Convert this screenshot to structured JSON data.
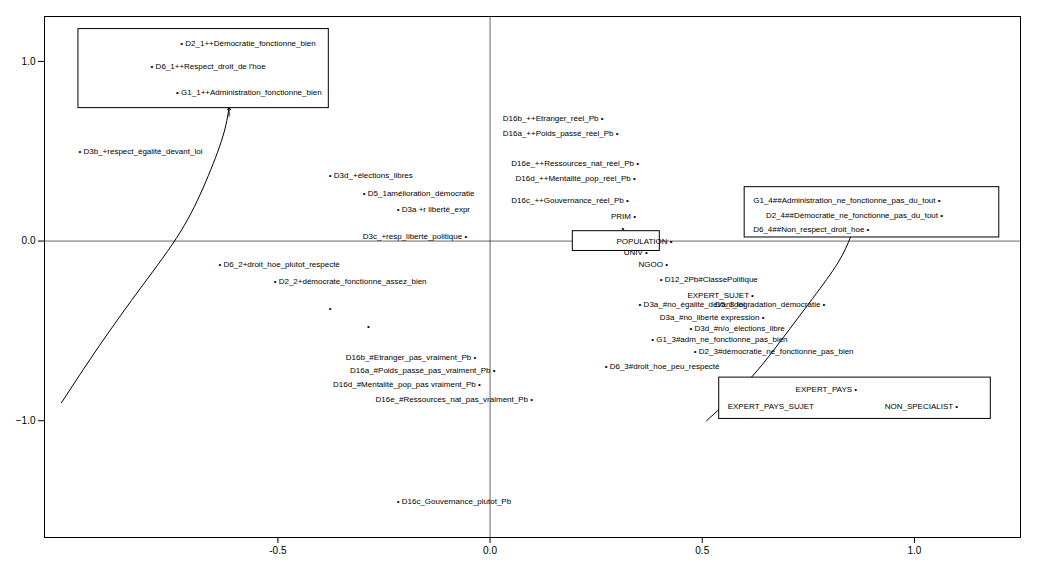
{
  "chart_data": {
    "type": "text_scatter",
    "xlim": [
      -1.05,
      1.25
    ],
    "ylim": [
      -1.65,
      1.25
    ],
    "xticks": [
      -0.5,
      {
        "value": 0,
        "label": "0.0"
      },
      0.5,
      {
        "value": 1,
        "label": "1.0"
      }
    ],
    "yticks": [
      {
        "value": -1,
        "label": "−1.0"
      },
      {
        "value": 0,
        "label": "0.0"
      },
      {
        "value": 1,
        "label": "1.0"
      }
    ],
    "grid": false,
    "cross_lines": {
      "x": 0,
      "y": 0
    },
    "curves": [
      {
        "x": [
          -0.615,
          -0.63,
          -0.67,
          -0.73,
          -0.82,
          -0.92,
          -1.01
        ],
        "y": [
          0.745,
          0.58,
          0.33,
          0.05,
          -0.25,
          -0.58,
          -0.9
        ]
      },
      {
        "x": [
          0.85,
          0.82,
          0.76,
          0.69,
          0.63,
          0.57,
          0.51
        ],
        "y": [
          0.025,
          -0.12,
          -0.32,
          -0.54,
          -0.72,
          -0.87,
          -1.0
        ]
      }
    ],
    "arrows": [
      {
        "from": [
          -0.615,
          0.695
        ],
        "to": [
          -0.615,
          0.745
        ]
      }
    ],
    "annotations": [
      {
        "x": -0.97,
        "y": 0.5,
        "text": "• D3b_+respect_égalité_devant_loi"
      },
      {
        "x": -0.38,
        "y": 0.365,
        "text": "• D3d_+élections_libres"
      },
      {
        "x": -0.3,
        "y": 0.265,
        "text": "• D5_1amélioration_démocratie"
      },
      {
        "x": -0.22,
        "y": 0.175,
        "text": "• D3a +r liberté_expr"
      },
      {
        "x": -0.3,
        "y": 0.025,
        "text": "D3c_+resp_liberté_politique •"
      },
      {
        "x": -0.64,
        "y": -0.13,
        "text": "• D6_2+droit_hoe_plutot_respecté"
      },
      {
        "x": -0.51,
        "y": -0.225,
        "text": "• D2_2+démocrate_fonctionne_assez_bien"
      },
      {
        "x": -0.38,
        "y": -0.375,
        "text": "•"
      },
      {
        "x": -0.29,
        "y": -0.475,
        "text": "•"
      },
      {
        "x": -0.34,
        "y": -0.645,
        "text": "D16b_#Etranger_pas_vraiment_Pb •"
      },
      {
        "x": -0.33,
        "y": -0.72,
        "text": "D16a_#Poids_passé_pas_vraiment_Pb •"
      },
      {
        "x": -0.37,
        "y": -0.8,
        "text": "D16d_#Mentalité_pop_pas vraiment_Pb •"
      },
      {
        "x": -0.27,
        "y": -0.882,
        "text": "D16e_#Ressources_nat_pas_vraiment_Pb •"
      },
      {
        "x": -0.22,
        "y": -1.45,
        "text": "• D16c_Gouvernance_plutot_Pb"
      },
      {
        "x": 0.03,
        "y": 0.68,
        "text": "D16b_++Etranger_réel_Pb •"
      },
      {
        "x": 0.03,
        "y": 0.6,
        "text": "D16a_++Poids_passé_réel_Pb •"
      },
      {
        "x": 0.05,
        "y": 0.43,
        "text": "D16e_++Ressources_nat_réel_Pb •"
      },
      {
        "x": 0.06,
        "y": 0.35,
        "text": "D16d_++Mentalité_pop_réel_Pb •"
      },
      {
        "x": 0.05,
        "y": 0.225,
        "text": "D16c_++Gouvernance_réel_Pb •"
      },
      {
        "x": 0.285,
        "y": 0.135,
        "text": "PRIM •"
      },
      {
        "x": 0.31,
        "y": 0.072,
        "text": "•"
      },
      {
        "x": 0.32,
        "y": 0.016,
        "text": "•"
      },
      {
        "x": 0.315,
        "y": -0.065,
        "text": "UNIV •"
      },
      {
        "x": 0.35,
        "y": -0.13,
        "text": "NGOO •"
      },
      {
        "x": 0.4,
        "y": -0.215,
        "text": "• D12_2Pb#ClassePolitique"
      },
      {
        "x": 0.465,
        "y": -0.3,
        "text": "EXPERT_SUJET •"
      },
      {
        "x": 0.35,
        "y": -0.355,
        "text": "• D3a_#no_égalité_devant_loi"
      },
      {
        "x": 0.53,
        "y": -0.355,
        "text": "D5_3dégradation_démocratie •"
      },
      {
        "x": 0.4,
        "y": -0.425,
        "text": "D3a_#no_liberté expression •"
      },
      {
        "x": 0.47,
        "y": -0.485,
        "text": "• D3d_#n/o_élections_libre"
      },
      {
        "x": 0.38,
        "y": -0.545,
        "text": "• G1_3#adm_ne_fonctionne_pas_bien"
      },
      {
        "x": 0.48,
        "y": -0.615,
        "text": "• D2_3#démocratie_ne_fonctionne_pas_bien"
      },
      {
        "x": 0.27,
        "y": -0.7,
        "text": "• D6_3#droit_hoe_peu_respecté"
      }
    ],
    "boxes": [
      {
        "x0": -0.97,
        "y0": 0.74,
        "x1": -0.38,
        "y1": 1.18,
        "labels": [
          {
            "x": -0.73,
            "y": 1.1,
            "text": "• D2_1++Démocratie_fonctionne_bien"
          },
          {
            "x": -0.8,
            "y": 0.97,
            "text": "• D6_1++Respect_droit_de l'hoe"
          },
          {
            "x": -0.74,
            "y": 0.83,
            "text": "• G1_1++Administration_fonctionne_bien"
          }
        ]
      },
      {
        "x0": 0.6,
        "y0": 0.02,
        "x1": 1.2,
        "y1": 0.3,
        "labels": [
          {
            "x": 0.62,
            "y": 0.225,
            "text": "G1_4##Administration_ne_fonctionne_pas_du_tout •"
          },
          {
            "x": 0.65,
            "y": 0.145,
            "text": "D2_4##Démocratie_ne_fonctionne_pas_du_tout •"
          },
          {
            "x": 0.62,
            "y": 0.062,
            "text": "D6_4##Non_respect_droit_hoe •"
          }
        ]
      },
      {
        "x0": 0.54,
        "y0": -0.99,
        "x1": 1.18,
        "y1": -0.76,
        "labels": [
          {
            "x": 0.72,
            "y": -0.825,
            "text": "EXPERT_PAYS •"
          },
          {
            "x": 0.56,
            "y": -0.92,
            "text": "EXPERT_PAYS_SUJET"
          },
          {
            "x": 0.93,
            "y": -0.92,
            "text": "NON_SPECIALIST •"
          }
        ]
      },
      {
        "x0": 0.195,
        "y0": -0.055,
        "x1": 0.4,
        "y1": 0.055,
        "labels": [
          {
            "x": 0.298,
            "y": 0.0,
            "text": "POPULATION •"
          }
        ]
      }
    ]
  }
}
